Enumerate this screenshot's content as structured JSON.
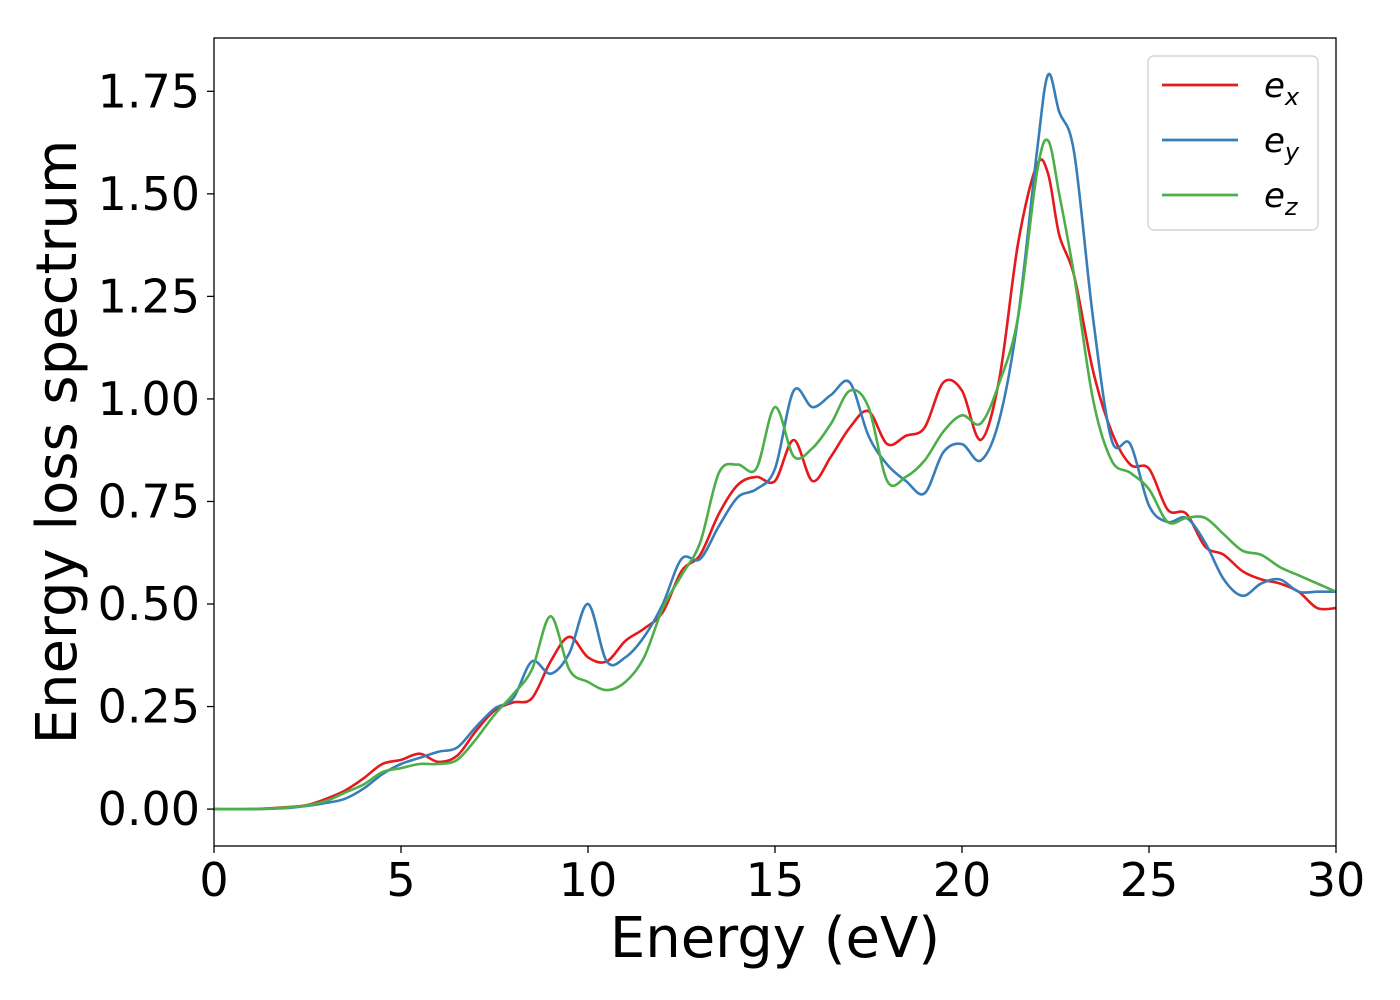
{
  "chart_data": {
    "type": "line",
    "title": "",
    "xlabel": "Energy (eV)",
    "ylabel": "Energy loss spectrum",
    "xlim": [
      0,
      30
    ],
    "ylim": [
      -0.09,
      1.88
    ],
    "xticks": [
      "0",
      "5",
      "10",
      "15",
      "20",
      "25",
      "30"
    ],
    "yticks": [
      "0.00",
      "0.25",
      "0.50",
      "0.75",
      "1.00",
      "1.25",
      "1.50",
      "1.75"
    ],
    "grid": false,
    "legend_position": "top-right",
    "legend": [
      {
        "base": "e",
        "sub": "x",
        "color": "#e41a1c"
      },
      {
        "base": "e",
        "sub": "y",
        "color": "#377eb8"
      },
      {
        "base": "e",
        "sub": "z",
        "color": "#4daf4a"
      }
    ],
    "x": [
      0,
      1,
      2,
      2.5,
      3,
      3.5,
      4,
      4.5,
      5,
      5.5,
      6,
      6.5,
      7,
      7.5,
      8,
      8.5,
      9,
      9.5,
      10,
      10.5,
      11,
      11.5,
      12,
      12.5,
      13,
      13.5,
      14,
      14.5,
      15,
      15.5,
      16,
      16.5,
      17,
      17.5,
      18,
      18.5,
      19,
      19.5,
      20,
      20.5,
      21,
      21.5,
      22,
      22.3,
      22.6,
      23,
      23.5,
      24,
      24.5,
      25,
      25.5,
      26,
      26.5,
      27,
      27.5,
      28,
      28.5,
      29,
      29.5,
      30
    ],
    "series": [
      {
        "color": "#e41a1c",
        "values": [
          0,
          0,
          0.005,
          0.01,
          0.025,
          0.045,
          0.075,
          0.11,
          0.12,
          0.135,
          0.115,
          0.13,
          0.19,
          0.24,
          0.26,
          0.27,
          0.36,
          0.42,
          0.37,
          0.36,
          0.41,
          0.44,
          0.48,
          0.58,
          0.62,
          0.72,
          0.79,
          0.81,
          0.8,
          0.9,
          0.8,
          0.86,
          0.93,
          0.97,
          0.89,
          0.91,
          0.93,
          1.04,
          1.02,
          0.9,
          1.05,
          1.38,
          1.57,
          1.55,
          1.4,
          1.3,
          1.07,
          0.92,
          0.84,
          0.83,
          0.73,
          0.72,
          0.64,
          0.62,
          0.58,
          0.56,
          0.55,
          0.53,
          0.49,
          0.49
        ]
      },
      {
        "color": "#377eb8",
        "values": [
          0,
          0,
          0.003,
          0.008,
          0.015,
          0.025,
          0.05,
          0.085,
          0.11,
          0.125,
          0.14,
          0.15,
          0.2,
          0.245,
          0.27,
          0.36,
          0.33,
          0.38,
          0.5,
          0.36,
          0.37,
          0.42,
          0.5,
          0.61,
          0.61,
          0.69,
          0.76,
          0.78,
          0.83,
          1.02,
          0.98,
          1.01,
          1.04,
          0.91,
          0.84,
          0.8,
          0.77,
          0.87,
          0.89,
          0.85,
          0.95,
          1.2,
          1.6,
          1.79,
          1.7,
          1.6,
          1.2,
          0.9,
          0.89,
          0.74,
          0.7,
          0.71,
          0.65,
          0.56,
          0.52,
          0.55,
          0.56,
          0.53,
          0.53,
          0.53
        ]
      },
      {
        "color": "#4daf4a",
        "values": [
          0,
          0,
          0.004,
          0.009,
          0.02,
          0.04,
          0.06,
          0.09,
          0.1,
          0.11,
          0.11,
          0.12,
          0.17,
          0.23,
          0.28,
          0.34,
          0.47,
          0.34,
          0.31,
          0.29,
          0.31,
          0.37,
          0.49,
          0.57,
          0.65,
          0.82,
          0.84,
          0.83,
          0.98,
          0.86,
          0.88,
          0.94,
          1.02,
          0.98,
          0.8,
          0.81,
          0.85,
          0.92,
          0.96,
          0.94,
          1.04,
          1.2,
          1.55,
          1.63,
          1.5,
          1.3,
          1.0,
          0.85,
          0.82,
          0.78,
          0.7,
          0.71,
          0.71,
          0.67,
          0.63,
          0.62,
          0.59,
          0.57,
          0.55,
          0.53
        ]
      }
    ]
  }
}
